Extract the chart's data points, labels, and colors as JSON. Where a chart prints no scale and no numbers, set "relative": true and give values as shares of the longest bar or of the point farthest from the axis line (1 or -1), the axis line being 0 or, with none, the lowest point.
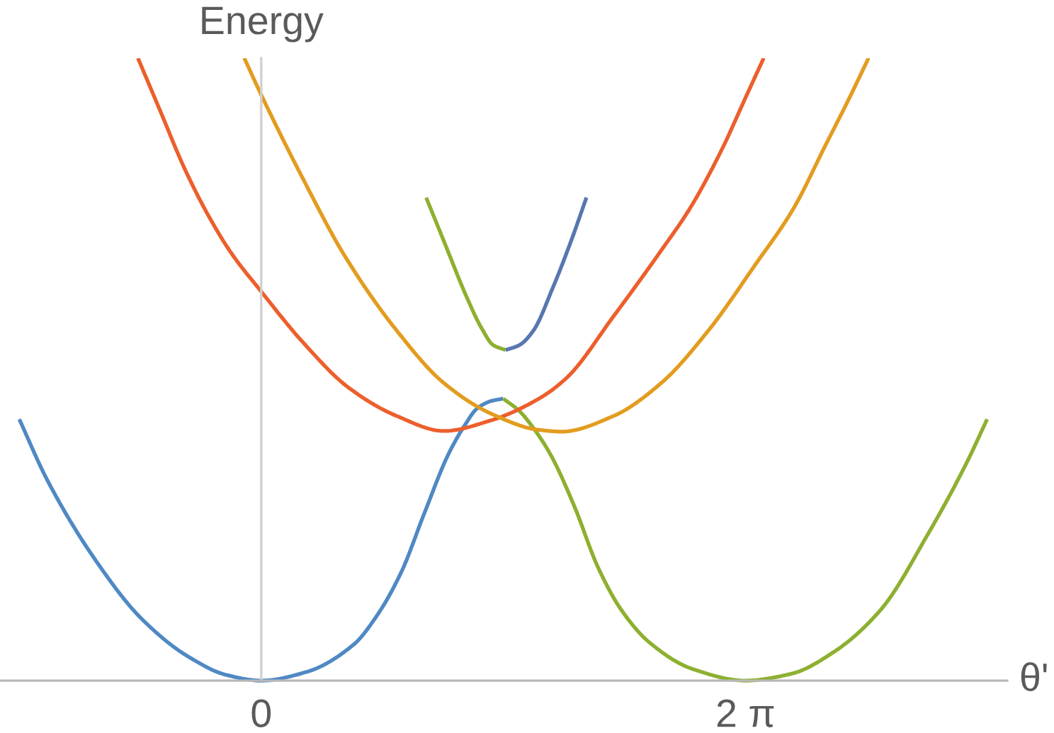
{
  "chart_data": {
    "type": "line",
    "xlabel": "θ'",
    "ylabel": "Energy",
    "relative": true,
    "tick_labels": "x",
    "line_style": "solid",
    "xlim": [
      -3.39,
      9.68
    ],
    "xticks": [
      0,
      {
        "value": 6.283,
        "label": "2 π"
      }
    ],
    "series": [
      {
        "color": "#4f89c4",
        "x": [
          -3.14,
          -2.78,
          -2.17,
          -1.55,
          -0.94,
          -0.45,
          0,
          0.59,
          1.2,
          1.51,
          1.82,
          2.12,
          2.43,
          2.64,
          2.8,
          2.98,
          3.14
        ],
        "values": [
          0.42,
          0.323,
          0.197,
          0.099,
          0.038,
          0.009,
          0,
          0.014,
          0.058,
          0.106,
          0.175,
          0.27,
          0.364,
          0.41,
          0.437,
          0.449,
          0.453
        ]
      },
      {
        "color": "#8db030",
        "x": [
          3.14,
          3.35,
          3.53,
          3.75,
          4.06,
          4.37,
          4.67,
          5.04,
          5.59,
          6.28,
          6.88,
          7.43,
          8.04,
          8.65,
          9.15,
          9.42
        ],
        "values": [
          0.453,
          0.433,
          0.406,
          0.364,
          0.281,
          0.182,
          0.114,
          0.061,
          0.019,
          0,
          0.011,
          0.046,
          0.114,
          0.235,
          0.349,
          0.42
        ]
      },
      {
        "color": "#ec5f2c",
        "x": [
          -1.6,
          -1.31,
          -1.0,
          -0.69,
          -0.39,
          0,
          0.53,
          1.14,
          1.76,
          2.37,
          2.98,
          3.59,
          3.96,
          4.57,
          5.19,
          5.57,
          5.98,
          6.29,
          6.52
        ],
        "values": [
          1.0,
          0.915,
          0.824,
          0.748,
          0.687,
          0.625,
          0.545,
          0.47,
          0.425,
          0.401,
          0.418,
          0.452,
          0.486,
          0.585,
          0.691,
          0.76,
          0.854,
          0.938,
          1.0
        ]
      },
      {
        "color": "#e39c1f",
        "x": [
          -0.22,
          0,
          0.53,
          1.08,
          1.76,
          2.37,
          2.98,
          3.59,
          3.9,
          4.57,
          5.19,
          5.8,
          6.41,
          6.9,
          7.33,
          7.64,
          7.88
        ],
        "values": [
          1.0,
          0.941,
          0.809,
          0.683,
          0.562,
          0.478,
          0.429,
          0.403,
          0.4,
          0.425,
          0.478,
          0.562,
          0.668,
          0.757,
          0.862,
          0.938,
          1.0
        ]
      },
      {
        "color": "#8db030",
        "x": [
          2.14,
          2.37,
          2.67,
          2.86,
          3.01,
          3.17
        ],
        "values": [
          0.776,
          0.706,
          0.615,
          0.566,
          0.539,
          0.531
        ]
      },
      {
        "color": "#5876b0",
        "x": [
          3.17,
          3.35,
          3.53,
          3.78,
          4.02,
          4.22
        ],
        "values": [
          0.531,
          0.539,
          0.562,
          0.63,
          0.706,
          0.776
        ]
      }
    ]
  }
}
